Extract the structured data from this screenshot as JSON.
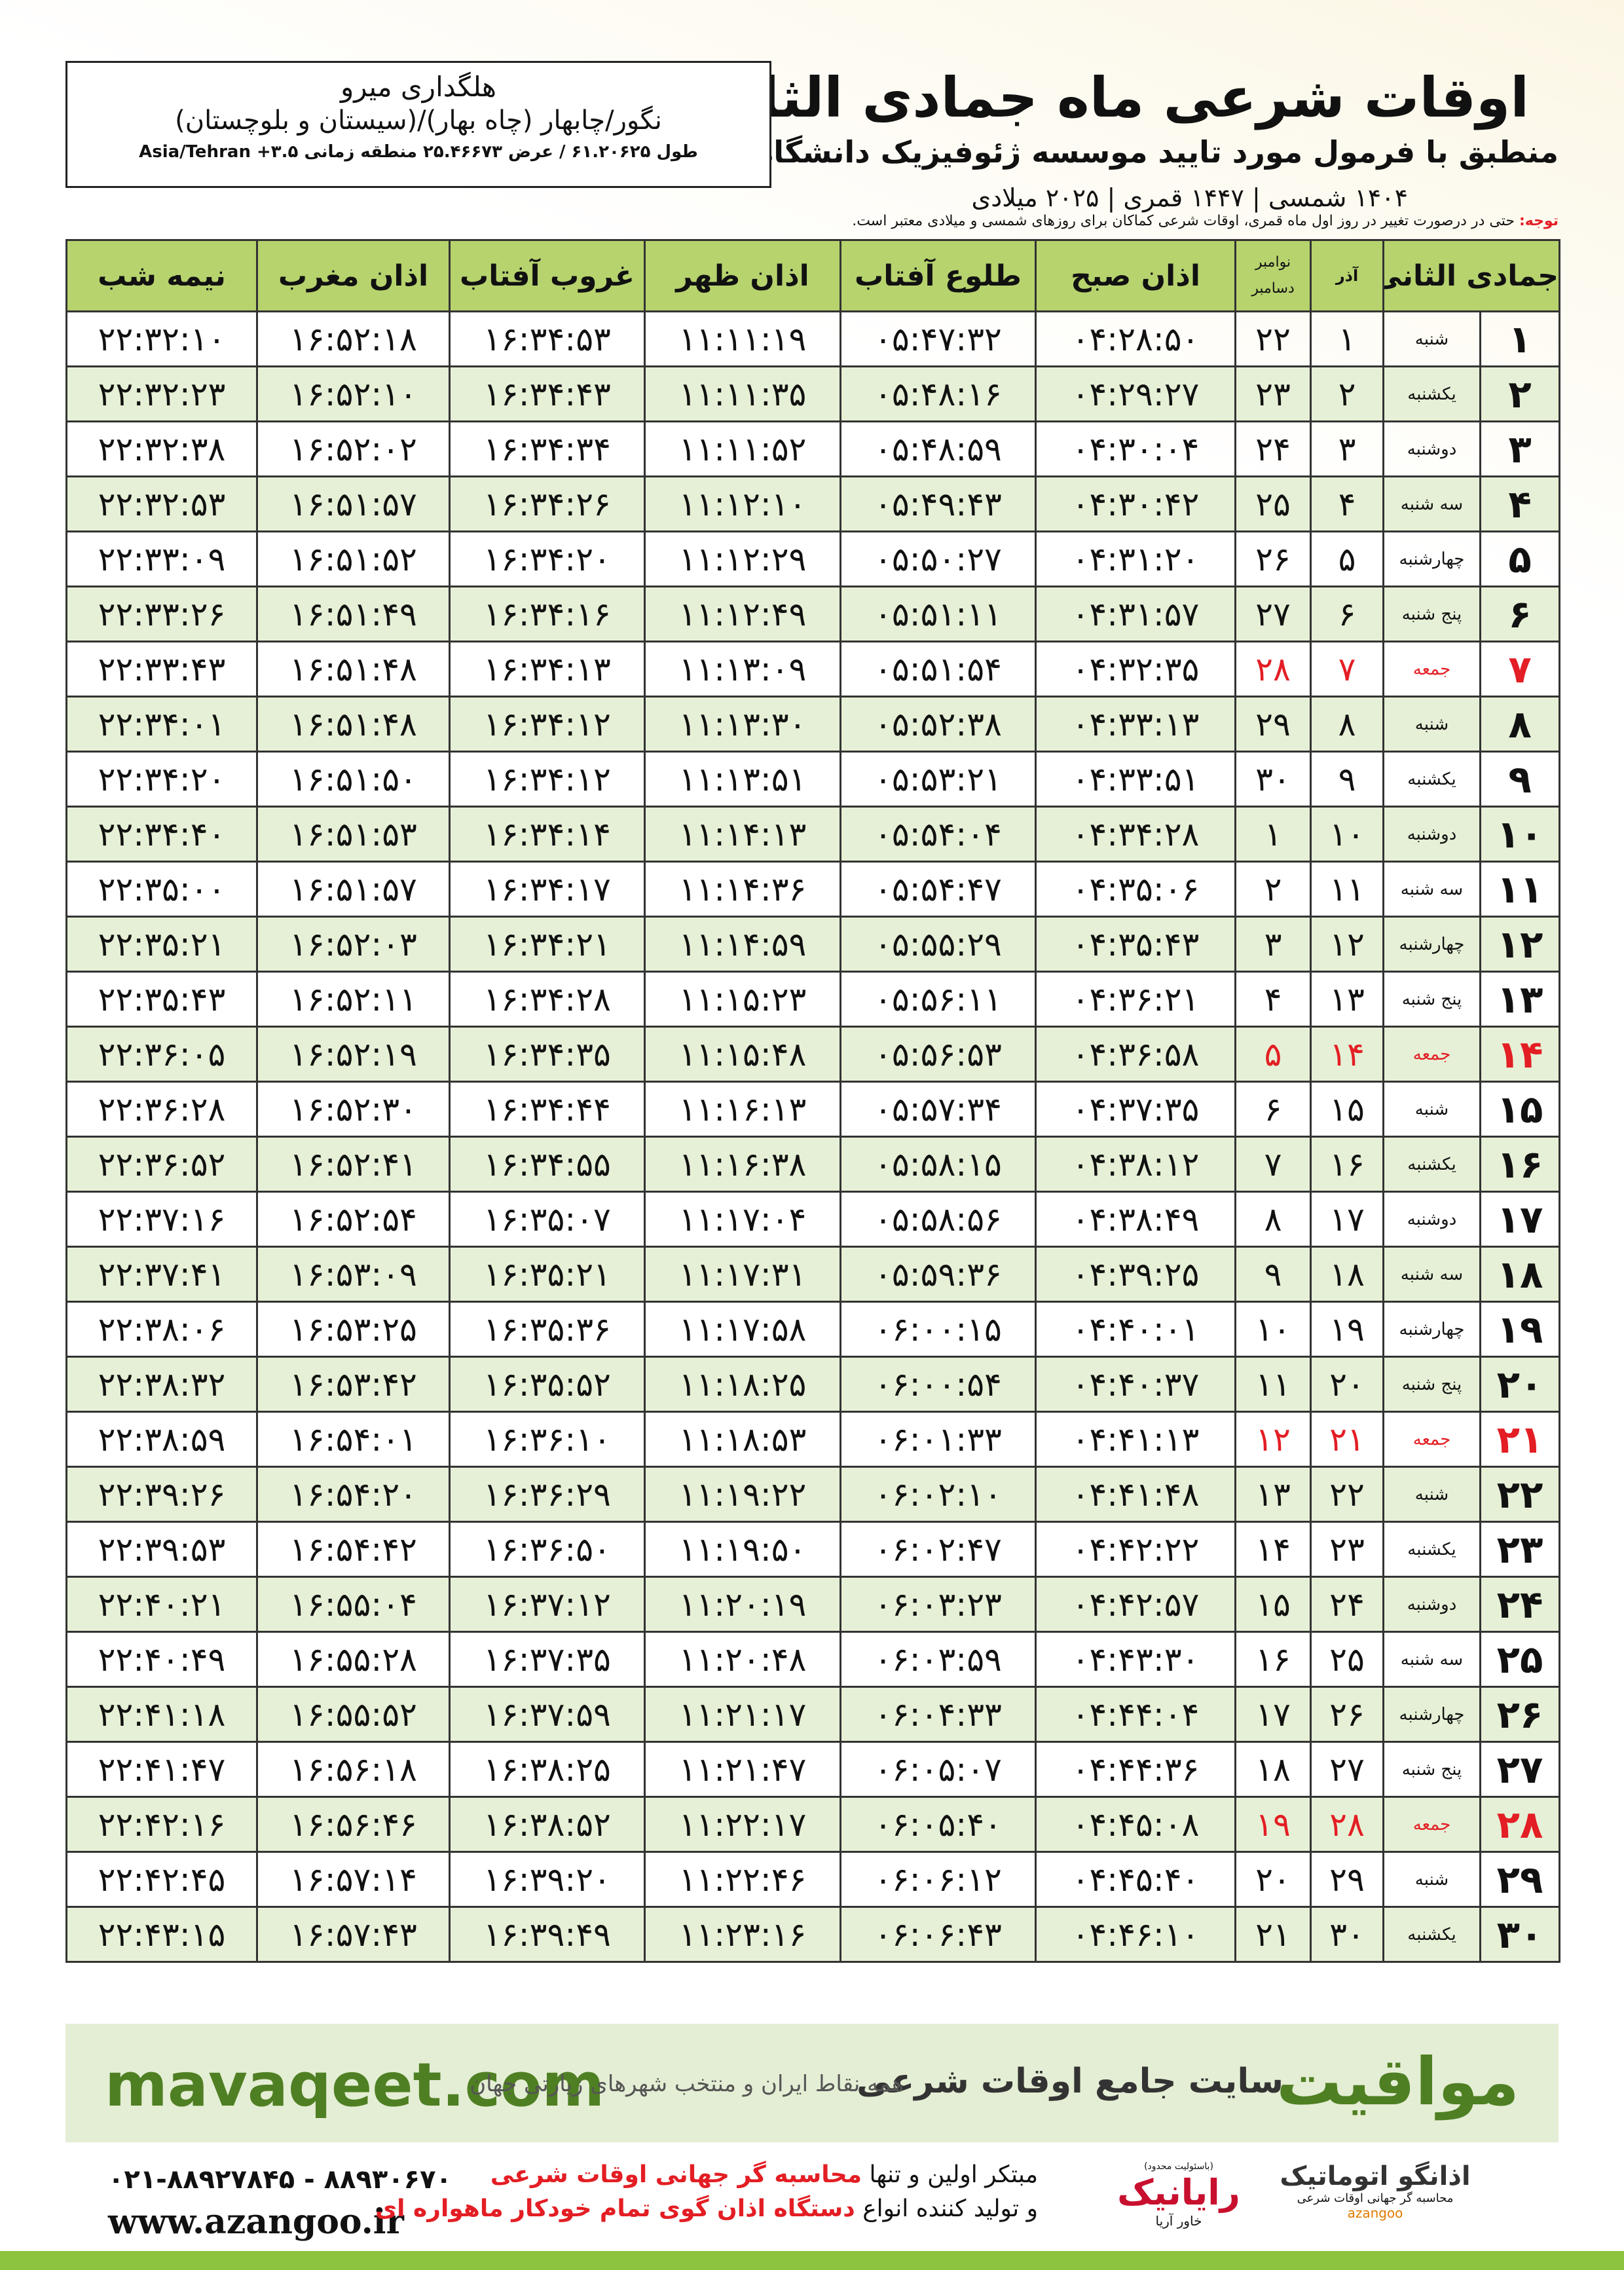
{
  "header": {
    "title": "اوقات شرعی ماه جمادی الثانی",
    "subtitle": "منطبق با فرمول مورد تایید موسسه ژئوفیزیک دانشگاه تهران",
    "dates": "۱۴۰۴ شمسی | ۱۴۴۷ قمری | ۲۰۲۵ میلادی"
  },
  "location": {
    "name": "هلگداری میرو",
    "region": "نگور/چابهار (چاه بهار)/(سیستان و بلوچستان)",
    "coords": "طول ۶۱.۲۰۶۲۵ / عرض ۲۵.۴۶۶۷۳ منطقه زمانی ۳.۵+ Asia/Tehran"
  },
  "note": {
    "label": "توجه:",
    "text": "حتی در درصورت تغییر در روز اول ماه قمری، اوقات شرعی کماکان برای روزهای شمسی و میلادی معتبر است."
  },
  "table": {
    "highlight_color": "#e31e24",
    "columns": [
      "جمادی الثانی",
      "آذر",
      {
        "top": "نوامبر",
        "bottom": "دسامبر"
      },
      "اذان صبح",
      "طلوع آفتاب",
      "اذان ظهر",
      "غروب آفتاب",
      "اذان مغرب",
      "نیمه شب"
    ],
    "rows": [
      {
        "cells": [
          "۱",
          "شنبه",
          "۱",
          "۲۲",
          "۰۴:۲۸:۵۰",
          "۰۵:۴۷:۳۲",
          "۱۱:۱۱:۱۹",
          "۱۶:۳۴:۵۳",
          "۱۶:۵۲:۱۸",
          "۲۲:۳۲:۱۰"
        ]
      },
      {
        "cells": [
          "۲",
          "یکشنبه",
          "۲",
          "۲۳",
          "۰۴:۲۹:۲۷",
          "۰۵:۴۸:۱۶",
          "۱۱:۱۱:۳۵",
          "۱۶:۳۴:۴۳",
          "۱۶:۵۲:۱۰",
          "۲۲:۳۲:۲۳"
        ]
      },
      {
        "cells": [
          "۳",
          "دوشنبه",
          "۳",
          "۲۴",
          "۰۴:۳۰:۰۴",
          "۰۵:۴۸:۵۹",
          "۱۱:۱۱:۵۲",
          "۱۶:۳۴:۳۴",
          "۱۶:۵۲:۰۲",
          "۲۲:۳۲:۳۸"
        ]
      },
      {
        "cells": [
          "۴",
          "سه شنبه",
          "۴",
          "۲۵",
          "۰۴:۳۰:۴۲",
          "۰۵:۴۹:۴۳",
          "۱۱:۱۲:۱۰",
          "۱۶:۳۴:۲۶",
          "۱۶:۵۱:۵۷",
          "۲۲:۳۲:۵۳"
        ]
      },
      {
        "cells": [
          "۵",
          "چهارشنبه",
          "۵",
          "۲۶",
          "۰۴:۳۱:۲۰",
          "۰۵:۵۰:۲۷",
          "۱۱:۱۲:۲۹",
          "۱۶:۳۴:۲۰",
          "۱۶:۵۱:۵۲",
          "۲۲:۳۳:۰۹"
        ]
      },
      {
        "cells": [
          "۶",
          "پنج شنبه",
          "۶",
          "۲۷",
          "۰۴:۳۱:۵۷",
          "۰۵:۵۱:۱۱",
          "۱۱:۱۲:۴۹",
          "۱۶:۳۴:۱۶",
          "۱۶:۵۱:۴۹",
          "۲۲:۳۳:۲۶"
        ]
      },
      {
        "cells": [
          "۷",
          "جمعه",
          "۷",
          "۲۸",
          "۰۴:۳۲:۳۵",
          "۰۵:۵۱:۵۴",
          "۱۱:۱۳:۰۹",
          "۱۶:۳۴:۱۳",
          "۱۶:۵۱:۴۸",
          "۲۲:۳۳:۴۳"
        ],
        "holiday": true
      },
      {
        "cells": [
          "۸",
          "شنبه",
          "۸",
          "۲۹",
          "۰۴:۳۳:۱۳",
          "۰۵:۵۲:۳۸",
          "۱۱:۱۳:۳۰",
          "۱۶:۳۴:۱۲",
          "۱۶:۵۱:۴۸",
          "۲۲:۳۴:۰۱"
        ]
      },
      {
        "cells": [
          "۹",
          "یکشنبه",
          "۹",
          "۳۰",
          "۰۴:۳۳:۵۱",
          "۰۵:۵۳:۲۱",
          "۱۱:۱۳:۵۱",
          "۱۶:۳۴:۱۲",
          "۱۶:۵۱:۵۰",
          "۲۲:۳۴:۲۰"
        ]
      },
      {
        "cells": [
          "۱۰",
          "دوشنبه",
          "۱۰",
          "۱",
          "۰۴:۳۴:۲۸",
          "۰۵:۵۴:۰۴",
          "۱۱:۱۴:۱۳",
          "۱۶:۳۴:۱۴",
          "۱۶:۵۱:۵۳",
          "۲۲:۳۴:۴۰"
        ]
      },
      {
        "cells": [
          "۱۱",
          "سه شنبه",
          "۱۱",
          "۲",
          "۰۴:۳۵:۰۶",
          "۰۵:۵۴:۴۷",
          "۱۱:۱۴:۳۶",
          "۱۶:۳۴:۱۷",
          "۱۶:۵۱:۵۷",
          "۲۲:۳۵:۰۰"
        ]
      },
      {
        "cells": [
          "۱۲",
          "چهارشنبه",
          "۱۲",
          "۳",
          "۰۴:۳۵:۴۳",
          "۰۵:۵۵:۲۹",
          "۱۱:۱۴:۵۹",
          "۱۶:۳۴:۲۱",
          "۱۶:۵۲:۰۳",
          "۲۲:۳۵:۲۱"
        ]
      },
      {
        "cells": [
          "۱۳",
          "پنج شنبه",
          "۱۳",
          "۴",
          "۰۴:۳۶:۲۱",
          "۰۵:۵۶:۱۱",
          "۱۱:۱۵:۲۳",
          "۱۶:۳۴:۲۸",
          "۱۶:۵۲:۱۱",
          "۲۲:۳۵:۴۳"
        ]
      },
      {
        "cells": [
          "۱۴",
          "جمعه",
          "۱۴",
          "۵",
          "۰۴:۳۶:۵۸",
          "۰۵:۵۶:۵۳",
          "۱۱:۱۵:۴۸",
          "۱۶:۳۴:۳۵",
          "۱۶:۵۲:۱۹",
          "۲۲:۳۶:۰۵"
        ],
        "holiday": true
      },
      {
        "cells": [
          "۱۵",
          "شنبه",
          "۱۵",
          "۶",
          "۰۴:۳۷:۳۵",
          "۰۵:۵۷:۳۴",
          "۱۱:۱۶:۱۳",
          "۱۶:۳۴:۴۴",
          "۱۶:۵۲:۳۰",
          "۲۲:۳۶:۲۸"
        ]
      },
      {
        "cells": [
          "۱۶",
          "یکشنبه",
          "۱۶",
          "۷",
          "۰۴:۳۸:۱۲",
          "۰۵:۵۸:۱۵",
          "۱۱:۱۶:۳۸",
          "۱۶:۳۴:۵۵",
          "۱۶:۵۲:۴۱",
          "۲۲:۳۶:۵۲"
        ]
      },
      {
        "cells": [
          "۱۷",
          "دوشنبه",
          "۱۷",
          "۸",
          "۰۴:۳۸:۴۹",
          "۰۵:۵۸:۵۶",
          "۱۱:۱۷:۰۴",
          "۱۶:۳۵:۰۷",
          "۱۶:۵۲:۵۴",
          "۲۲:۳۷:۱۶"
        ]
      },
      {
        "cells": [
          "۱۸",
          "سه شنبه",
          "۱۸",
          "۹",
          "۰۴:۳۹:۲۵",
          "۰۵:۵۹:۳۶",
          "۱۱:۱۷:۳۱",
          "۱۶:۳۵:۲۱",
          "۱۶:۵۳:۰۹",
          "۲۲:۳۷:۴۱"
        ]
      },
      {
        "cells": [
          "۱۹",
          "چهارشنبه",
          "۱۹",
          "۱۰",
          "۰۴:۴۰:۰۱",
          "۰۶:۰۰:۱۵",
          "۱۱:۱۷:۵۸",
          "۱۶:۳۵:۳۶",
          "۱۶:۵۳:۲۵",
          "۲۲:۳۸:۰۶"
        ]
      },
      {
        "cells": [
          "۲۰",
          "پنج شنبه",
          "۲۰",
          "۱۱",
          "۰۴:۴۰:۳۷",
          "۰۶:۰۰:۵۴",
          "۱۱:۱۸:۲۵",
          "۱۶:۳۵:۵۲",
          "۱۶:۵۳:۴۲",
          "۲۲:۳۸:۳۲"
        ]
      },
      {
        "cells": [
          "۲۱",
          "جمعه",
          "۲۱",
          "۱۲",
          "۰۴:۴۱:۱۳",
          "۰۶:۰۱:۳۳",
          "۱۱:۱۸:۵۳",
          "۱۶:۳۶:۱۰",
          "۱۶:۵۴:۰۱",
          "۲۲:۳۸:۵۹"
        ],
        "holiday": true
      },
      {
        "cells": [
          "۲۲",
          "شنبه",
          "۲۲",
          "۱۳",
          "۰۴:۴۱:۴۸",
          "۰۶:۰۲:۱۰",
          "۱۱:۱۹:۲۲",
          "۱۶:۳۶:۲۹",
          "۱۶:۵۴:۲۰",
          "۲۲:۳۹:۲۶"
        ]
      },
      {
        "cells": [
          "۲۳",
          "یکشنبه",
          "۲۳",
          "۱۴",
          "۰۴:۴۲:۲۲",
          "۰۶:۰۲:۴۷",
          "۱۱:۱۹:۵۰",
          "۱۶:۳۶:۵۰",
          "۱۶:۵۴:۴۲",
          "۲۲:۳۹:۵۳"
        ]
      },
      {
        "cells": [
          "۲۴",
          "دوشنبه",
          "۲۴",
          "۱۵",
          "۰۴:۴۲:۵۷",
          "۰۶:۰۳:۲۳",
          "۱۱:۲۰:۱۹",
          "۱۶:۳۷:۱۲",
          "۱۶:۵۵:۰۴",
          "۲۲:۴۰:۲۱"
        ]
      },
      {
        "cells": [
          "۲۵",
          "سه شنبه",
          "۲۵",
          "۱۶",
          "۰۴:۴۳:۳۰",
          "۰۶:۰۳:۵۹",
          "۱۱:۲۰:۴۸",
          "۱۶:۳۷:۳۵",
          "۱۶:۵۵:۲۸",
          "۲۲:۴۰:۴۹"
        ]
      },
      {
        "cells": [
          "۲۶",
          "چهارشنبه",
          "۲۶",
          "۱۷",
          "۰۴:۴۴:۰۴",
          "۰۶:۰۴:۳۳",
          "۱۱:۲۱:۱۷",
          "۱۶:۳۷:۵۹",
          "۱۶:۵۵:۵۲",
          "۲۲:۴۱:۱۸"
        ]
      },
      {
        "cells": [
          "۲۷",
          "پنج شنبه",
          "۲۷",
          "۱۸",
          "۰۴:۴۴:۳۶",
          "۰۶:۰۵:۰۷",
          "۱۱:۲۱:۴۷",
          "۱۶:۳۸:۲۵",
          "۱۶:۵۶:۱۸",
          "۲۲:۴۱:۴۷"
        ]
      },
      {
        "cells": [
          "۲۸",
          "جمعه",
          "۲۸",
          "۱۹",
          "۰۴:۴۵:۰۸",
          "۰۶:۰۵:۴۰",
          "۱۱:۲۲:۱۷",
          "۱۶:۳۸:۵۲",
          "۱۶:۵۶:۴۶",
          "۲۲:۴۲:۱۶"
        ],
        "holiday": true
      },
      {
        "cells": [
          "۲۹",
          "شنبه",
          "۲۹",
          "۲۰",
          "۰۴:۴۵:۴۰",
          "۰۶:۰۶:۱۲",
          "۱۱:۲۲:۴۶",
          "۱۶:۳۹:۲۰",
          "۱۶:۵۷:۱۴",
          "۲۲:۴۲:۴۵"
        ]
      },
      {
        "cells": [
          "۳۰",
          "یکشنبه",
          "۳۰",
          "۲۱",
          "۰۴:۴۶:۱۰",
          "۰۶:۰۶:۴۳",
          "۱۱:۲۳:۱۶",
          "۱۶:۳۹:۴۹",
          "۱۶:۵۷:۴۳",
          "۲۲:۴۳:۱۵"
        ]
      }
    ]
  },
  "banner": {
    "brand": "مواقیت",
    "tagline": "سایت جامع اوقات شرعی",
    "coverage": "همه نقاط ایران و منتخب شهرهای زیارتی جهان",
    "site": "mavaqeet.com"
  },
  "footer": {
    "phones": "۰۲۱-۸۸۹۲۷۸۴۵ - ۸۸۹۳۰۶۷۰",
    "web": "www.azangoo.ir",
    "line1_a": "مبتکر اولین و تنها",
    "line1_b": "محاسبه گر جهانی اوقات شرعی",
    "line2_a": "و تولید کننده انواع",
    "line2_b": "دستگاه اذان گوی تمام خودکار ماهواره ای",
    "logo1_note": "(باسئولیت محدود)",
    "logo1_name": "رایانیک",
    "logo1_sub": "خاور آریا",
    "logo2_name": "اذانگو اتوماتیک",
    "logo2_sub": "محاسبه گر جهانی اوقات شرعی",
    "logo2_latin": "azangoo"
  }
}
